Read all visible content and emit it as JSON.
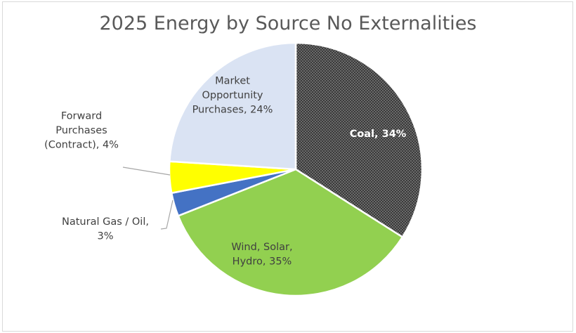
{
  "chart_data": {
    "type": "pie",
    "title": "2025 Energy by Source No Externalities",
    "slices": [
      {
        "name": "Coal",
        "value": 34,
        "label_lines": [
          "Coal, 34%"
        ],
        "color": "#3a3a3a",
        "pattern": "dots"
      },
      {
        "name": "Wind, Solar, Hydro",
        "value": 35,
        "label_lines": [
          "Wind, Solar,",
          "Hydro, 35%"
        ],
        "color": "#92d050"
      },
      {
        "name": "Natural Gas / Oil",
        "value": 3,
        "label_lines": [
          "Natural Gas / Oil,",
          "3%"
        ],
        "color": "#4472c4"
      },
      {
        "name": "Forward Purchases (Contract)",
        "value": 4,
        "label_lines": [
          "Forward",
          "Purchases",
          "(Contract), 4%"
        ],
        "color": "#ffff00"
      },
      {
        "name": "Market Opportunity Purchases",
        "value": 24,
        "label_lines": [
          "Market",
          "Opportunity",
          "Purchases, 24%"
        ],
        "color": "#dae3f3"
      }
    ]
  }
}
